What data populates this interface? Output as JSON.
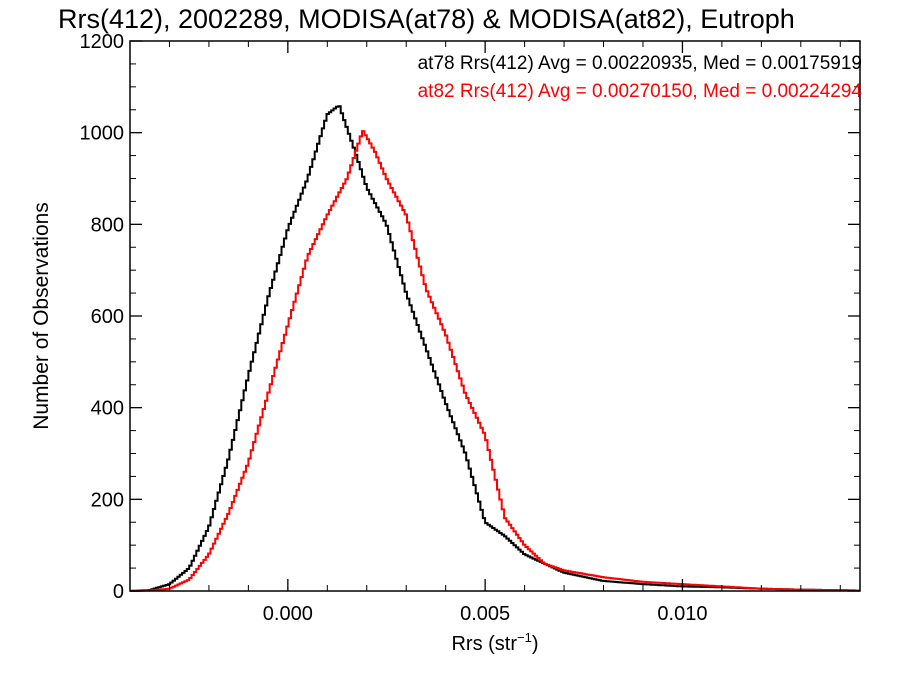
{
  "chart_data": {
    "type": "line",
    "title": "Rrs(412), 2002289, MODISA(at78) & MODISA(at82), Eutroph",
    "xlabel_main": "Rrs (str",
    "xlabel_sup": "−1",
    "xlabel_close": ")",
    "ylabel": "Number of Observations",
    "xlim": [
      -0.004,
      0.0145
    ],
    "ylim": [
      0,
      1200
    ],
    "xticks": [
      0.0,
      0.005,
      0.01
    ],
    "xtick_labels": [
      "0.000",
      "0.005",
      "0.010"
    ],
    "yticks": [
      0,
      200,
      400,
      600,
      800,
      1000,
      1200
    ],
    "ytick_labels": [
      "0",
      "200",
      "400",
      "600",
      "800",
      "1000",
      "1200"
    ],
    "grid": false,
    "legend_placement": "top-right",
    "series": [
      {
        "name": "at78",
        "color": "#000000",
        "label": "at78 Rrs(412) Avg = 0.00220935, Med = 0.00175919",
        "points": [
          [
            -0.004,
            0
          ],
          [
            -0.0035,
            2
          ],
          [
            -0.003,
            15
          ],
          [
            -0.0025,
            50
          ],
          [
            -0.002,
            140
          ],
          [
            -0.0015,
            290
          ],
          [
            -0.001,
            470
          ],
          [
            -0.0005,
            640
          ],
          [
            0.0,
            790
          ],
          [
            0.0005,
            900
          ],
          [
            0.001,
            1040
          ],
          [
            0.0013,
            1060
          ],
          [
            0.0017,
            960
          ],
          [
            0.002,
            880
          ],
          [
            0.0025,
            800
          ],
          [
            0.003,
            650
          ],
          [
            0.0035,
            530
          ],
          [
            0.004,
            410
          ],
          [
            0.0045,
            300
          ],
          [
            0.005,
            150
          ],
          [
            0.0055,
            120
          ],
          [
            0.006,
            80
          ],
          [
            0.0065,
            60
          ],
          [
            0.007,
            40
          ],
          [
            0.008,
            22
          ],
          [
            0.009,
            15
          ],
          [
            0.01,
            10
          ],
          [
            0.011,
            8
          ],
          [
            0.012,
            5
          ],
          [
            0.013,
            3
          ],
          [
            0.0145,
            1
          ]
        ]
      },
      {
        "name": "at82",
        "color": "#ff0000",
        "label": "at82 Rrs(412) Avg = 0.00270150, Med = 0.00224294",
        "points": [
          [
            -0.004,
            0
          ],
          [
            -0.0035,
            1
          ],
          [
            -0.003,
            5
          ],
          [
            -0.0025,
            25
          ],
          [
            -0.002,
            80
          ],
          [
            -0.0015,
            170
          ],
          [
            -0.001,
            280
          ],
          [
            -0.0005,
            430
          ],
          [
            0.0,
            580
          ],
          [
            0.0005,
            730
          ],
          [
            0.001,
            820
          ],
          [
            0.0015,
            900
          ],
          [
            0.0019,
            1005
          ],
          [
            0.0022,
            960
          ],
          [
            0.0025,
            900
          ],
          [
            0.003,
            820
          ],
          [
            0.0035,
            660
          ],
          [
            0.004,
            560
          ],
          [
            0.0045,
            430
          ],
          [
            0.005,
            340
          ],
          [
            0.0055,
            160
          ],
          [
            0.006,
            100
          ],
          [
            0.0065,
            60
          ],
          [
            0.007,
            45
          ],
          [
            0.008,
            30
          ],
          [
            0.009,
            20
          ],
          [
            0.01,
            15
          ],
          [
            0.011,
            10
          ],
          [
            0.012,
            5
          ],
          [
            0.013,
            3
          ],
          [
            0.0145,
            1
          ]
        ]
      }
    ]
  }
}
